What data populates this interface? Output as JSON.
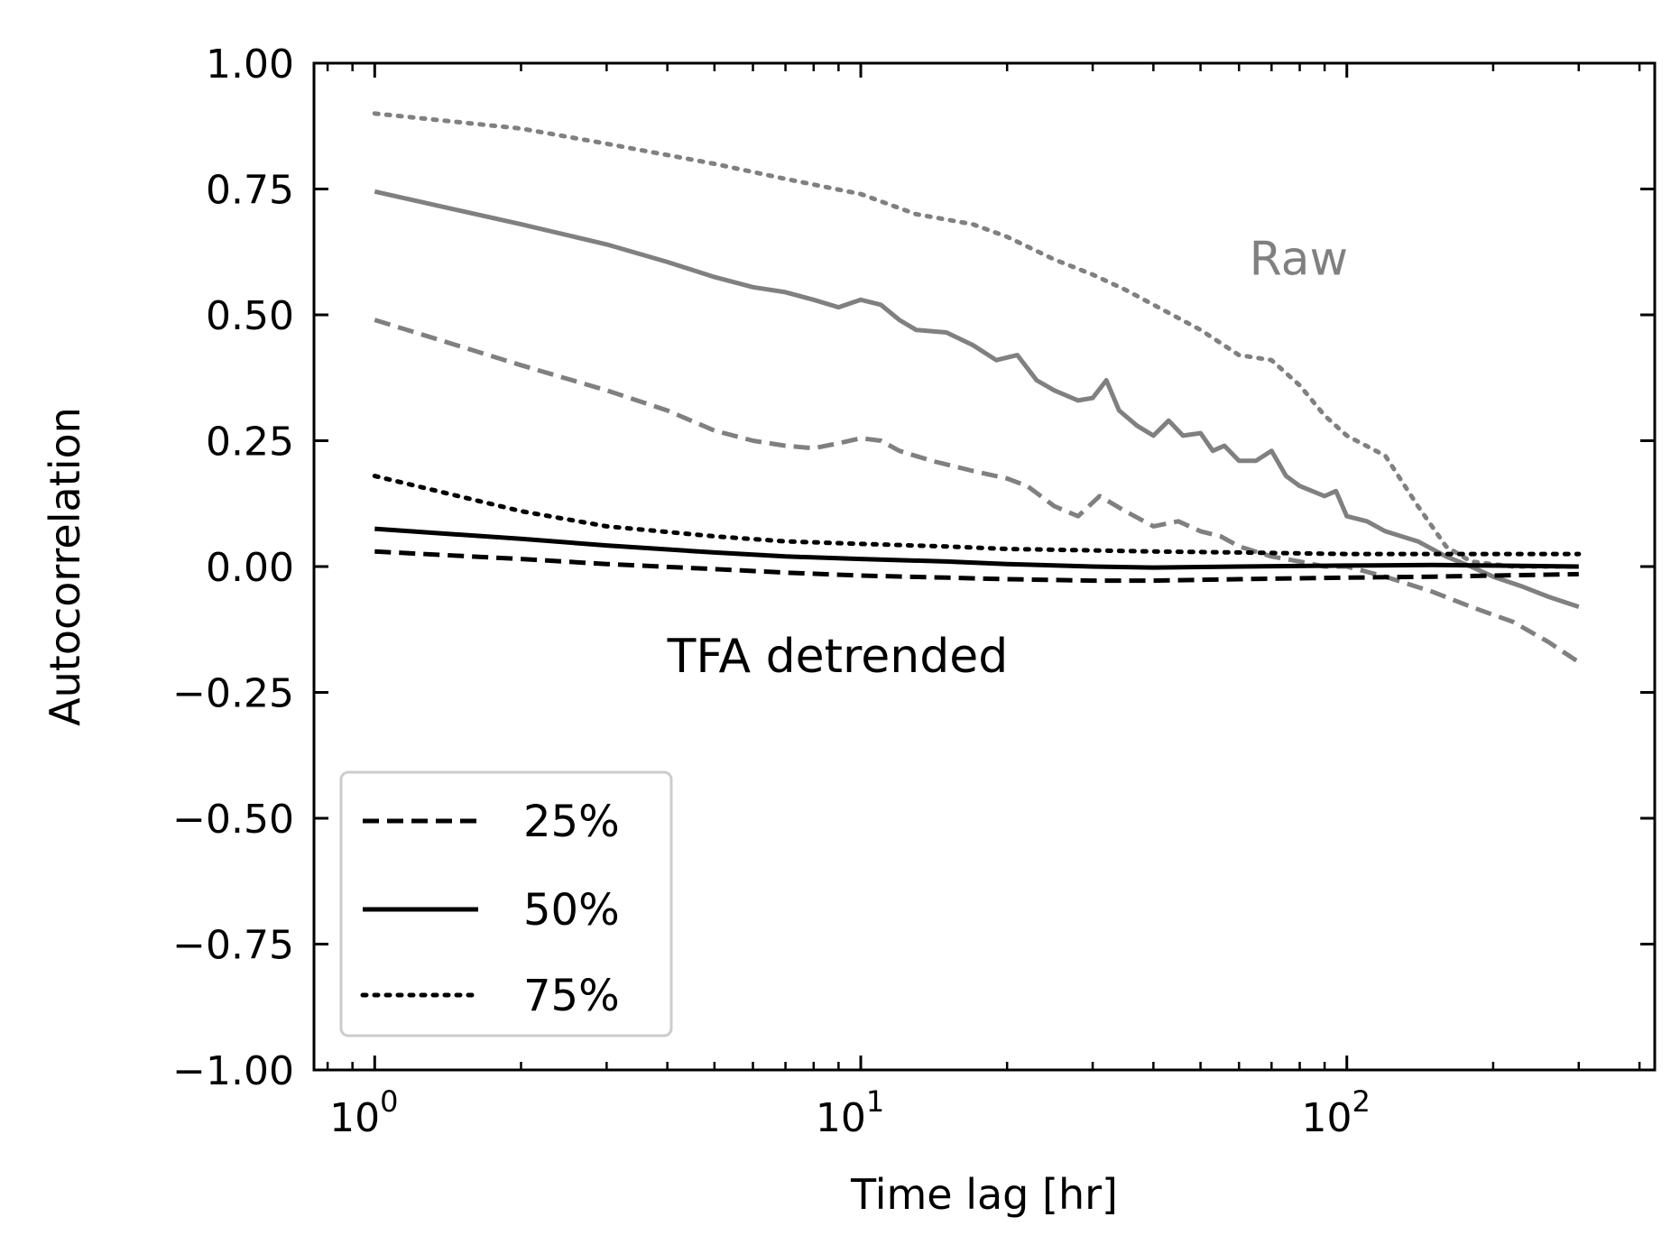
{
  "chart_data": {
    "type": "line",
    "xlabel": "Time lag [hr]",
    "ylabel": "Autocorrelation",
    "xscale": "log",
    "xlim": [
      0.75,
      430
    ],
    "ylim": [
      -1.0,
      1.0
    ],
    "grid": false,
    "legend_position": "lower-left",
    "x_ticks": [
      {
        "value": 1,
        "base": "10",
        "exp": "0"
      },
      {
        "value": 10,
        "base": "10",
        "exp": "1"
      },
      {
        "value": 100,
        "base": "10",
        "exp": "2"
      }
    ],
    "y_ticks": [
      {
        "value": 1.0,
        "label": "1.00"
      },
      {
        "value": 0.75,
        "label": "0.75"
      },
      {
        "value": 0.5,
        "label": "0.50"
      },
      {
        "value": 0.25,
        "label": "0.25"
      },
      {
        "value": 0.0,
        "label": "0.00"
      },
      {
        "value": -0.25,
        "label": "−0.25"
      },
      {
        "value": -0.5,
        "label": "−0.50"
      },
      {
        "value": -0.75,
        "label": "−0.75"
      },
      {
        "value": -1.0,
        "label": "−1.00"
      }
    ],
    "annotations": [
      {
        "text": "Raw",
        "x": 63,
        "y": 0.58,
        "color": "#808080"
      },
      {
        "text": "TFA detrended",
        "x": 4.0,
        "y": -0.21,
        "color": "#000000"
      }
    ],
    "legend": [
      {
        "label": "25%",
        "style": "dashed"
      },
      {
        "label": "50%",
        "style": "solid"
      },
      {
        "label": "75%",
        "style": "dotted"
      }
    ],
    "colors": {
      "raw": "#808080",
      "tfa": "#000000"
    },
    "series": [
      {
        "group": "Raw",
        "quantile": "25%",
        "style": "dashed",
        "color": "#808080",
        "x": [
          1,
          2,
          3,
          4,
          5,
          6,
          7,
          8,
          9,
          10,
          11,
          12,
          14,
          17,
          20,
          22,
          25,
          28,
          31,
          35,
          40,
          45,
          50,
          55,
          60,
          70,
          80,
          90,
          100,
          120,
          150,
          180,
          220,
          260,
          300
        ],
        "y": [
          0.49,
          0.4,
          0.35,
          0.31,
          0.27,
          0.25,
          0.24,
          0.235,
          0.245,
          0.255,
          0.25,
          0.23,
          0.21,
          0.19,
          0.175,
          0.16,
          0.12,
          0.1,
          0.14,
          0.11,
          0.08,
          0.09,
          0.07,
          0.06,
          0.04,
          0.02,
          0.01,
          0.0,
          0.0,
          -0.02,
          -0.05,
          -0.08,
          -0.11,
          -0.15,
          -0.19
        ]
      },
      {
        "group": "Raw",
        "quantile": "50%",
        "style": "solid",
        "color": "#808080",
        "x": [
          1,
          2,
          3,
          4,
          5,
          6,
          7,
          8,
          9,
          10,
          11,
          12,
          13,
          15,
          17,
          19,
          21,
          23,
          25,
          28,
          30,
          32,
          34,
          37,
          40,
          43,
          46,
          50,
          53,
          56,
          60,
          65,
          70,
          75,
          80,
          90,
          95,
          100,
          110,
          120,
          140,
          160,
          180,
          200,
          230,
          260,
          300
        ],
        "y": [
          0.745,
          0.68,
          0.64,
          0.605,
          0.575,
          0.555,
          0.545,
          0.53,
          0.515,
          0.53,
          0.52,
          0.49,
          0.47,
          0.465,
          0.44,
          0.41,
          0.42,
          0.37,
          0.35,
          0.33,
          0.335,
          0.37,
          0.31,
          0.28,
          0.26,
          0.29,
          0.26,
          0.265,
          0.23,
          0.24,
          0.21,
          0.21,
          0.23,
          0.18,
          0.16,
          0.14,
          0.15,
          0.1,
          0.09,
          0.07,
          0.05,
          0.02,
          0.0,
          -0.02,
          -0.04,
          -0.06,
          -0.08
        ]
      },
      {
        "group": "Raw",
        "quantile": "75%",
        "style": "dotted",
        "color": "#808080",
        "x": [
          1,
          2,
          3,
          5,
          7,
          10,
          13,
          17,
          20,
          25,
          30,
          35,
          40,
          50,
          60,
          70,
          80,
          90,
          100,
          120,
          140,
          160,
          180,
          220,
          260,
          300
        ],
        "y": [
          0.9,
          0.87,
          0.84,
          0.8,
          0.77,
          0.74,
          0.7,
          0.68,
          0.655,
          0.61,
          0.58,
          0.55,
          0.52,
          0.47,
          0.42,
          0.41,
          0.36,
          0.3,
          0.26,
          0.22,
          0.12,
          0.04,
          0.01,
          0.0,
          0.0,
          0.0
        ]
      },
      {
        "group": "TFA detrended",
        "quantile": "25%",
        "style": "dashed",
        "color": "#000000",
        "x": [
          1,
          2,
          3,
          5,
          7,
          10,
          15,
          20,
          30,
          40,
          60,
          100,
          150,
          200,
          300
        ],
        "y": [
          0.03,
          0.015,
          0.005,
          -0.005,
          -0.012,
          -0.018,
          -0.022,
          -0.025,
          -0.028,
          -0.028,
          -0.025,
          -0.022,
          -0.02,
          -0.018,
          -0.015
        ]
      },
      {
        "group": "TFA detrended",
        "quantile": "50%",
        "style": "solid",
        "color": "#000000",
        "x": [
          1,
          2,
          3,
          5,
          7,
          10,
          15,
          20,
          30,
          40,
          60,
          100,
          150,
          200,
          300
        ],
        "y": [
          0.075,
          0.055,
          0.042,
          0.028,
          0.02,
          0.015,
          0.01,
          0.005,
          0.0,
          -0.002,
          0.0,
          0.002,
          0.003,
          0.002,
          0.0
        ]
      },
      {
        "group": "TFA detrended",
        "quantile": "75%",
        "style": "dotted",
        "color": "#000000",
        "x": [
          1,
          2,
          3,
          5,
          7,
          10,
          15,
          20,
          30,
          40,
          60,
          100,
          150,
          200,
          300
        ],
        "y": [
          0.18,
          0.11,
          0.08,
          0.06,
          0.05,
          0.045,
          0.04,
          0.035,
          0.032,
          0.03,
          0.028,
          0.025,
          0.025,
          0.025,
          0.025
        ]
      }
    ]
  }
}
